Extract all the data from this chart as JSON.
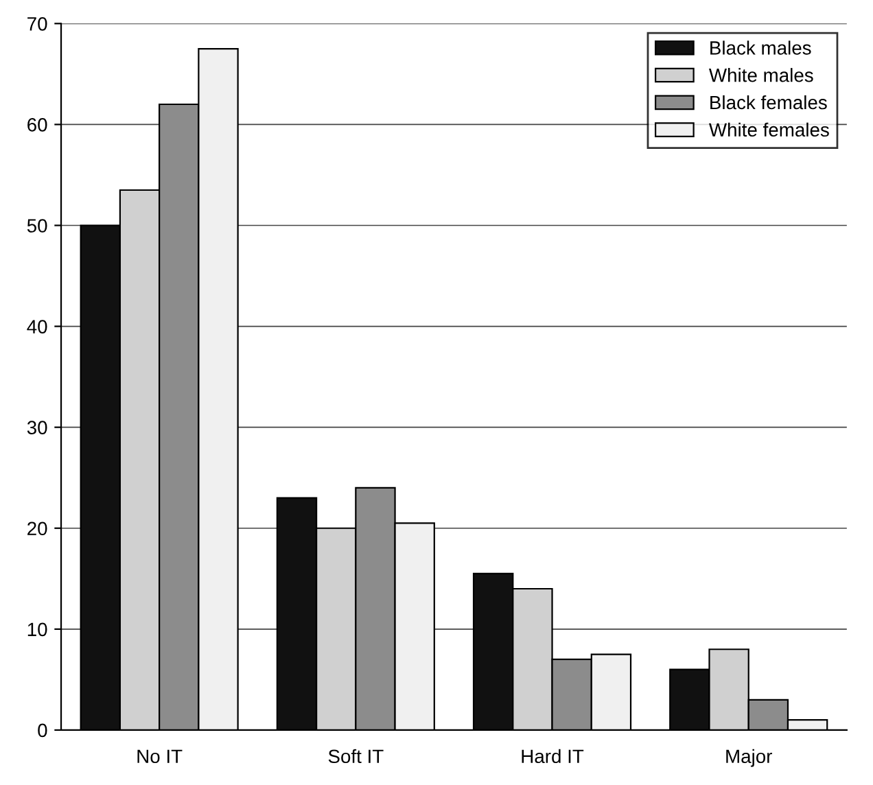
{
  "chart_data": {
    "type": "bar",
    "categories": [
      "No IT",
      "Soft IT",
      "Hard IT",
      "Major"
    ],
    "series": [
      {
        "name": "Black males",
        "color": "#111111",
        "values": [
          50,
          23,
          15.5,
          6
        ]
      },
      {
        "name": "White males",
        "color": "#d0d0d0",
        "values": [
          53.5,
          20,
          14,
          8
        ]
      },
      {
        "name": "Black females",
        "color": "#8c8c8c",
        "values": [
          62,
          24,
          7,
          3
        ]
      },
      {
        "name": "White females",
        "color": "#f0f0f0",
        "values": [
          67.5,
          20.5,
          7.5,
          1
        ]
      }
    ],
    "ylim": [
      0,
      70
    ],
    "yticks": [
      0,
      10,
      20,
      30,
      40,
      50,
      60,
      70
    ],
    "grid": "y",
    "legend": "top right"
  }
}
